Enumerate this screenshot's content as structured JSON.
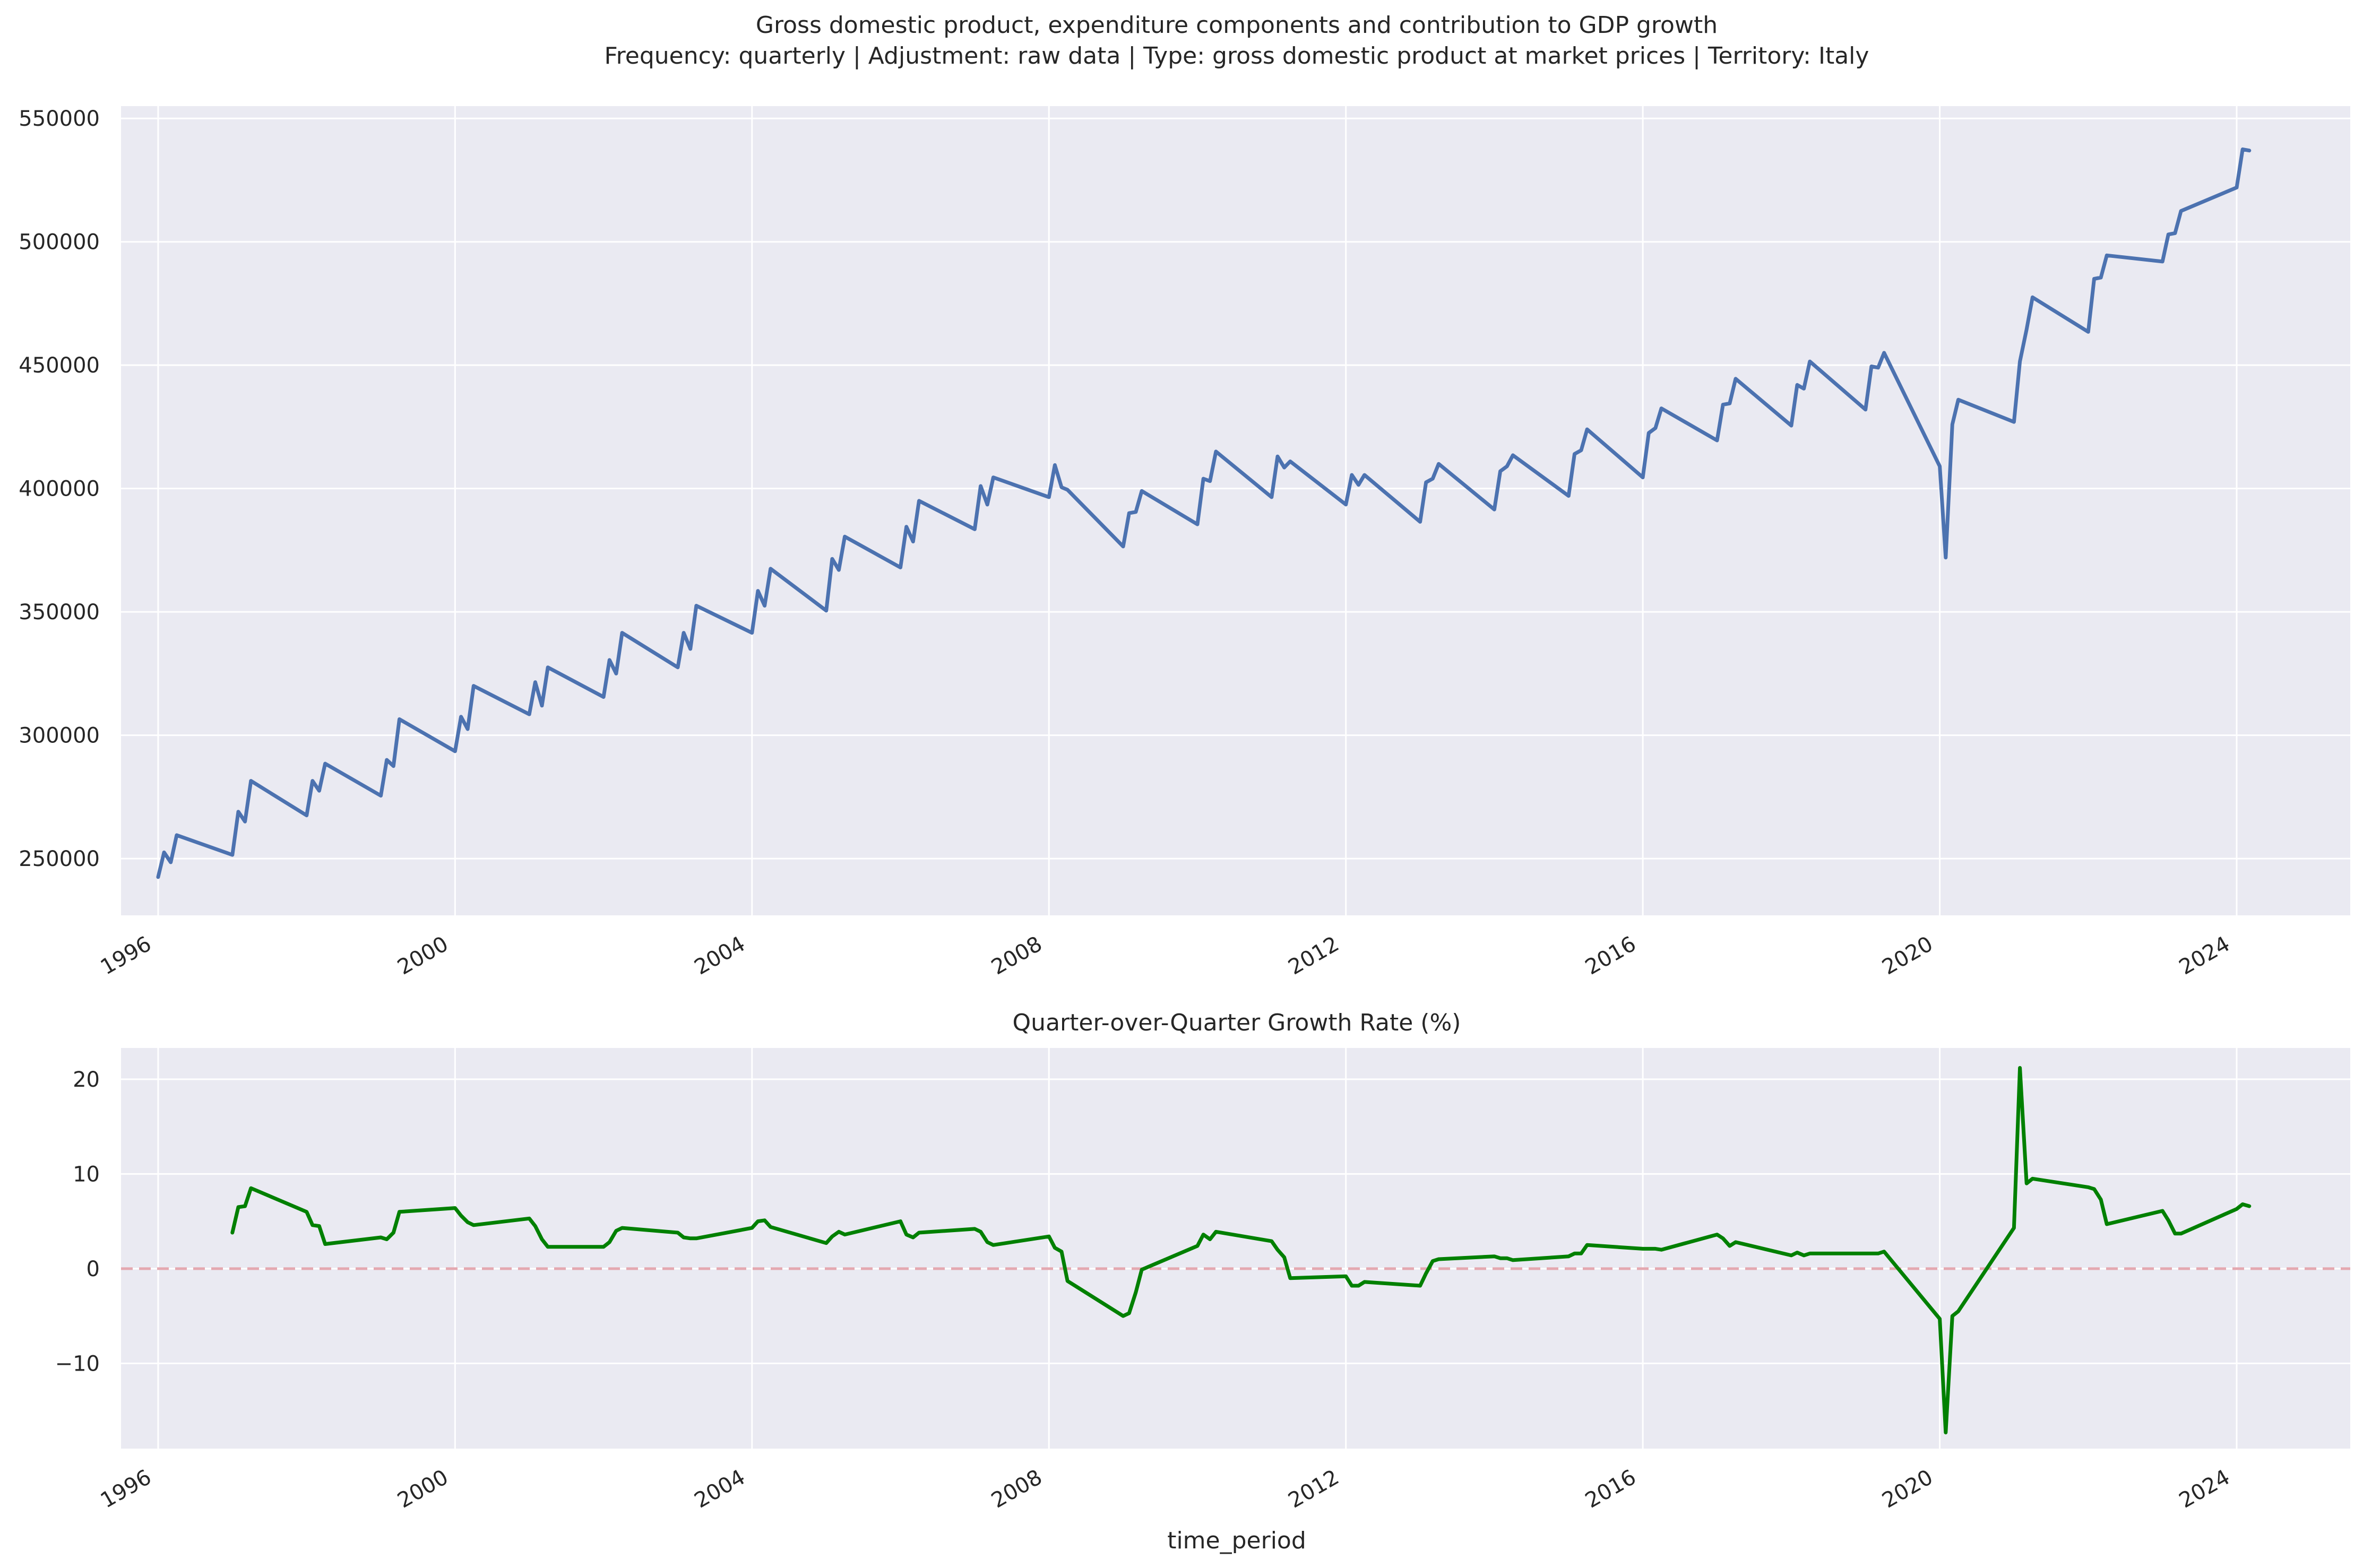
{
  "figure": {
    "suptitle_line1": "Gross domestic product, expenditure components and contribution to GDP growth",
    "suptitle_line2": "Frequency: quarterly | Adjustment: raw data | Type: gross domestic product at market prices | Territory: Italy"
  },
  "colors": {
    "axes_bg": "#EAEAF2",
    "grid": "#ffffff",
    "gdp_line": "#4C72B0",
    "growth_line": "#008000",
    "zero_line": "#E4A8B0"
  },
  "chart_data": [
    {
      "type": "line",
      "title": "",
      "xlabel": "",
      "ylabel": "",
      "xlim": [
        1995.5,
        2025.53
      ],
      "ylim": [
        227000,
        555000
      ],
      "x_ticks": [
        1996,
        2000,
        2004,
        2008,
        2012,
        2016,
        2020,
        2024
      ],
      "x_tick_labels": [
        "1996",
        "2000",
        "2004",
        "2008",
        "2012",
        "2016",
        "2020",
        "2024"
      ],
      "y_ticks": [
        250000,
        300000,
        350000,
        400000,
        450000,
        500000,
        550000
      ],
      "y_tick_labels": [
        "250000",
        "300000",
        "350000",
        "400000",
        "450000",
        "500000",
        "550000"
      ],
      "grid": true,
      "series": [
        {
          "name": "",
          "x": [
            1996.0,
            1996.08,
            1996.17,
            1996.25,
            1997.0,
            1997.08,
            1997.17,
            1997.25,
            1998.0,
            1998.08,
            1998.17,
            1998.25,
            1999.0,
            1999.08,
            1999.17,
            1999.25,
            2000.0,
            2000.08,
            2000.17,
            2000.25,
            2001.0,
            2001.08,
            2001.17,
            2001.25,
            2002.0,
            2002.08,
            2002.17,
            2002.25,
            2003.0,
            2003.08,
            2003.17,
            2003.25,
            2004.0,
            2004.08,
            2004.17,
            2004.25,
            2005.0,
            2005.08,
            2005.17,
            2005.25,
            2006.0,
            2006.08,
            2006.17,
            2006.25,
            2007.0,
            2007.08,
            2007.17,
            2007.25,
            2008.0,
            2008.08,
            2008.17,
            2008.25,
            2009.0,
            2009.08,
            2009.17,
            2009.25,
            2010.0,
            2010.08,
            2010.17,
            2010.25,
            2011.0,
            2011.08,
            2011.17,
            2011.25,
            2012.0,
            2012.08,
            2012.17,
            2012.25,
            2013.0,
            2013.08,
            2013.17,
            2013.25,
            2014.0,
            2014.08,
            2014.17,
            2014.25,
            2015.0,
            2015.08,
            2015.17,
            2015.25,
            2016.0,
            2016.08,
            2016.17,
            2016.25,
            2017.0,
            2017.08,
            2017.17,
            2017.25,
            2018.0,
            2018.08,
            2018.17,
            2018.25,
            2019.0,
            2019.08,
            2019.17,
            2019.25,
            2020.0,
            2020.08,
            2020.17,
            2020.25,
            2021.0,
            2021.08,
            2021.17,
            2021.25,
            2022.0,
            2022.08,
            2022.17,
            2022.25,
            2023.0,
            2023.08,
            2023.17,
            2023.25,
            2024.0,
            2024.08,
            2024.17
          ],
          "values": [
            242500,
            252500,
            248500,
            259500,
            251500,
            269000,
            265000,
            281500,
            267500,
            281500,
            277500,
            288500,
            275500,
            290000,
            287500,
            306500,
            293500,
            307500,
            302500,
            320000,
            308500,
            321500,
            312000,
            327500,
            315500,
            330500,
            325000,
            341500,
            327500,
            341500,
            335000,
            352500,
            341500,
            358500,
            352500,
            367500,
            350500,
            371500,
            367000,
            380500,
            368000,
            384500,
            378500,
            395000,
            383500,
            401000,
            393500,
            404500,
            396500,
            409500,
            400500,
            399500,
            376500,
            390000,
            390500,
            399000,
            385500,
            404000,
            403000,
            415000,
            396500,
            413000,
            408500,
            411000,
            393500,
            405500,
            401500,
            405500,
            386500,
            402500,
            404000,
            410000,
            391500,
            407000,
            409000,
            413500,
            397000,
            414000,
            415500,
            424000,
            404500,
            422500,
            424500,
            432500,
            419500,
            434000,
            434500,
            444500,
            425500,
            442000,
            440500,
            451500,
            432000,
            449500,
            449000,
            455000,
            409000,
            372000,
            426000,
            436000,
            427000,
            451500,
            464500,
            477500,
            463500,
            485000,
            485500,
            494500,
            492000,
            503000,
            503500,
            512500,
            522000,
            537500,
            537000
          ]
        }
      ]
    },
    {
      "type": "line",
      "title": "Quarter-over-Quarter Growth Rate (%)",
      "xlabel": "time_period",
      "ylabel": "",
      "xlim": [
        1995.5,
        2025.53
      ],
      "ylim": [
        -19,
        23.3
      ],
      "x_ticks": [
        1996,
        2000,
        2004,
        2008,
        2012,
        2016,
        2020,
        2024
      ],
      "x_tick_labels": [
        "1996",
        "2000",
        "2004",
        "2008",
        "2012",
        "2016",
        "2020",
        "2024"
      ],
      "y_ticks": [
        -10,
        0,
        10,
        20
      ],
      "y_tick_labels": [
        "−10",
        "0",
        "10",
        "20"
      ],
      "grid": true,
      "reference_line": 0,
      "series": [
        {
          "name": "",
          "x": [
            1997.0,
            1997.08,
            1997.17,
            1997.25,
            1998.0,
            1998.08,
            1998.17,
            1998.25,
            1999.0,
            1999.08,
            1999.17,
            1999.25,
            2000.0,
            2000.08,
            2000.17,
            2000.25,
            2001.0,
            2001.08,
            2001.17,
            2001.25,
            2002.0,
            2002.08,
            2002.17,
            2002.25,
            2003.0,
            2003.08,
            2003.17,
            2003.25,
            2004.0,
            2004.08,
            2004.17,
            2004.25,
            2005.0,
            2005.08,
            2005.17,
            2005.25,
            2006.0,
            2006.08,
            2006.17,
            2006.25,
            2007.0,
            2007.08,
            2007.17,
            2007.25,
            2008.0,
            2008.08,
            2008.17,
            2008.25,
            2009.0,
            2009.08,
            2009.17,
            2009.25,
            2010.0,
            2010.08,
            2010.17,
            2010.25,
            2011.0,
            2011.08,
            2011.17,
            2011.25,
            2012.0,
            2012.08,
            2012.17,
            2012.25,
            2013.0,
            2013.08,
            2013.17,
            2013.25,
            2014.0,
            2014.08,
            2014.17,
            2014.25,
            2015.0,
            2015.08,
            2015.17,
            2015.25,
            2016.0,
            2016.08,
            2016.17,
            2016.25,
            2017.0,
            2017.08,
            2017.17,
            2017.25,
            2018.0,
            2018.08,
            2018.17,
            2018.25,
            2019.0,
            2019.08,
            2019.17,
            2019.25,
            2020.0,
            2020.08,
            2020.17,
            2020.25,
            2021.0,
            2021.08,
            2021.17,
            2021.25,
            2022.0,
            2022.08,
            2022.17,
            2022.25,
            2023.0,
            2023.08,
            2023.17,
            2023.25,
            2024.0,
            2024.08,
            2024.17
          ],
          "values": [
            3.8,
            6.5,
            6.6,
            8.5,
            6.0,
            4.6,
            4.5,
            2.6,
            3.3,
            3.1,
            3.8,
            6.0,
            6.4,
            5.6,
            4.9,
            4.6,
            5.3,
            4.5,
            3.1,
            2.3,
            2.3,
            2.8,
            4.0,
            4.3,
            3.8,
            3.3,
            3.2,
            3.2,
            4.3,
            5.0,
            5.1,
            4.4,
            2.7,
            3.4,
            3.9,
            3.6,
            5.0,
            3.6,
            3.3,
            3.8,
            4.2,
            3.9,
            2.8,
            2.5,
            3.4,
            2.2,
            1.8,
            -1.3,
            -5.0,
            -4.7,
            -2.5,
            -0.1,
            2.4,
            3.6,
            3.1,
            3.9,
            2.9,
            2.0,
            1.2,
            -1.0,
            -0.8,
            -1.8,
            -1.8,
            -1.4,
            -1.8,
            -0.5,
            0.8,
            1.0,
            1.3,
            1.1,
            1.1,
            0.9,
            1.3,
            1.6,
            1.6,
            2.5,
            2.1,
            2.1,
            2.1,
            2.0,
            3.6,
            3.2,
            2.4,
            2.8,
            1.4,
            1.7,
            1.4,
            1.6,
            1.6,
            1.6,
            1.6,
            1.8,
            -5.3,
            -17.3,
            -5.0,
            -4.5,
            4.3,
            21.2,
            9.0,
            9.5,
            8.6,
            8.4,
            7.3,
            4.7,
            6.1,
            5.1,
            3.7,
            3.7,
            6.3,
            6.8,
            6.6
          ]
        }
      ]
    }
  ]
}
